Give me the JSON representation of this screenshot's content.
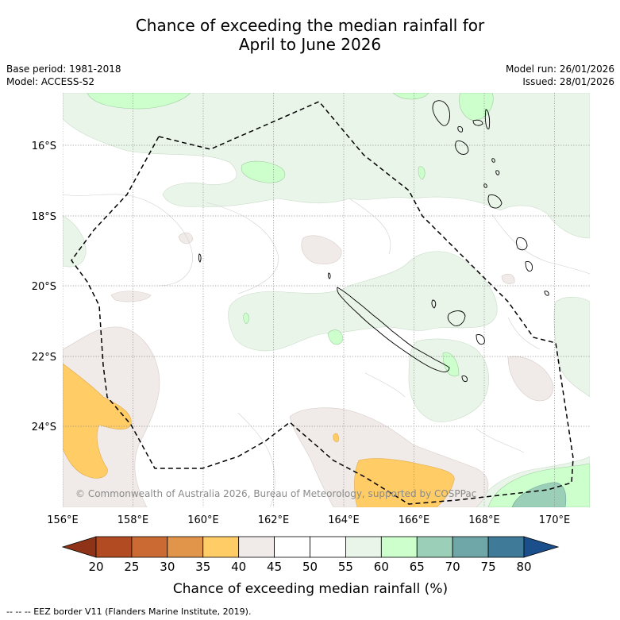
{
  "title": {
    "line1": "Chance of exceeding the median rainfall for",
    "line2": "April to June 2026"
  },
  "meta": {
    "base_period": "Base period: 1981-2018",
    "model": "Model: ACCESS-S2",
    "model_run": "Model run: 26/01/2026",
    "issued": "Issued: 28/01/2026"
  },
  "map": {
    "lon_labels": [
      "156°E",
      "158°E",
      "160°E",
      "162°E",
      "164°E",
      "166°E",
      "168°E",
      "170°E"
    ],
    "lat_labels": [
      "16°S",
      "18°S",
      "20°S",
      "22°S",
      "24°S"
    ],
    "copyright": "© Commonwealth of Australia 2026, Bureau of Meteorology, supported by COSPPac"
  },
  "colorbar": {
    "ticks": [
      "20",
      "25",
      "30",
      "35",
      "40",
      "45",
      "50",
      "55",
      "60",
      "65",
      "70",
      "75",
      "80"
    ],
    "colors": [
      "#b34b22",
      "#cc6a33",
      "#e0954a",
      "#ffcc66",
      "#f0ebe8",
      "#ffffff",
      "#ffffff",
      "#eaf5ea",
      "#ccffcc",
      "#9ccfb8",
      "#6fa6a8",
      "#3f7a99"
    ],
    "under_color": "#8f3318",
    "over_color": "#1a4f8c",
    "title": "Chance of exceeding median rainfall (%)"
  },
  "footnote": "--  --  -- EEZ border V11 (Flanders Marine Institute, 2019)."
}
